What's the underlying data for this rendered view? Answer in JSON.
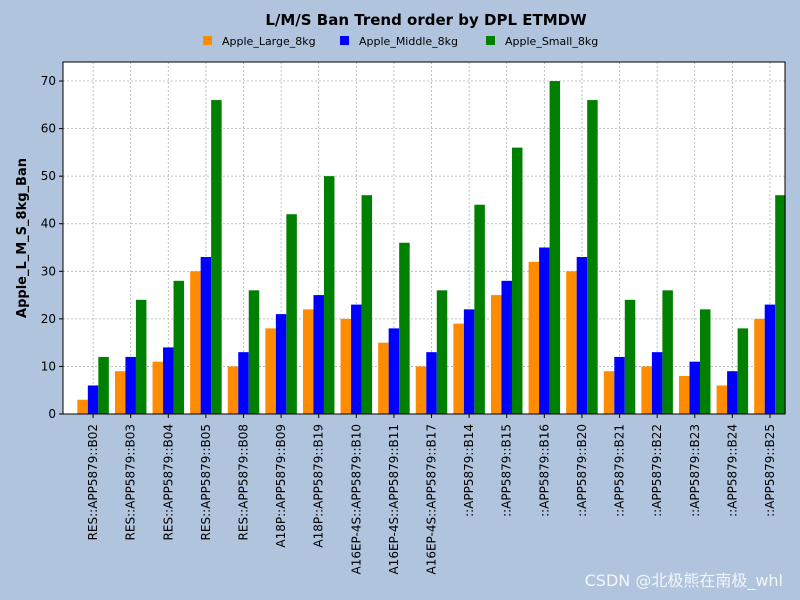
{
  "chart_data": {
    "type": "bar",
    "title": "L/M/S Ban Trend order by DPL ETMDW",
    "xlabel": "",
    "ylabel": "Apple_L_M_S_8kg_Ban",
    "ylim": [
      0,
      74
    ],
    "yticks": [
      0,
      10,
      20,
      30,
      40,
      50,
      60,
      70
    ],
    "grid": true,
    "legend_position": "top-center",
    "categories": [
      "RES::APP5879::B02",
      "RES::APP5879::B03",
      "RES::APP5879::B04",
      "RES::APP5879::B05",
      "RES::APP5879::B08",
      "A18P::APP5879::B09",
      "A18P::APP5879::B19",
      "A16EP-4S::APP5879::B10",
      "A16EP-4S::APP5879::B11",
      "A16EP-4S::APP5879::B17",
      "::APP5879::B14",
      "::APP5879::B15",
      "::APP5879::B16",
      "::APP5879::B20",
      "::APP5879::B21",
      "::APP5879::B22",
      "::APP5879::B23",
      "::APP5879::B24",
      "::APP5879::B25"
    ],
    "series": [
      {
        "name": "Apple_Large_8kg",
        "color": "#ff8c00",
        "values": [
          3,
          9,
          11,
          30,
          10,
          18,
          22,
          20,
          15,
          10,
          19,
          25,
          32,
          30,
          9,
          10,
          8,
          6,
          20
        ]
      },
      {
        "name": "Apple_Middle_8kg",
        "color": "#0000ff",
        "values": [
          6,
          12,
          14,
          33,
          13,
          21,
          25,
          23,
          18,
          13,
          22,
          28,
          35,
          33,
          12,
          13,
          11,
          9,
          23
        ]
      },
      {
        "name": "Apple_Small_8kg",
        "color": "#008000",
        "values": [
          12,
          24,
          28,
          66,
          26,
          42,
          50,
          46,
          36,
          26,
          44,
          56,
          70,
          66,
          24,
          26,
          22,
          18,
          46
        ]
      }
    ]
  },
  "watermark": "CSDN @北极熊在南极_whl"
}
